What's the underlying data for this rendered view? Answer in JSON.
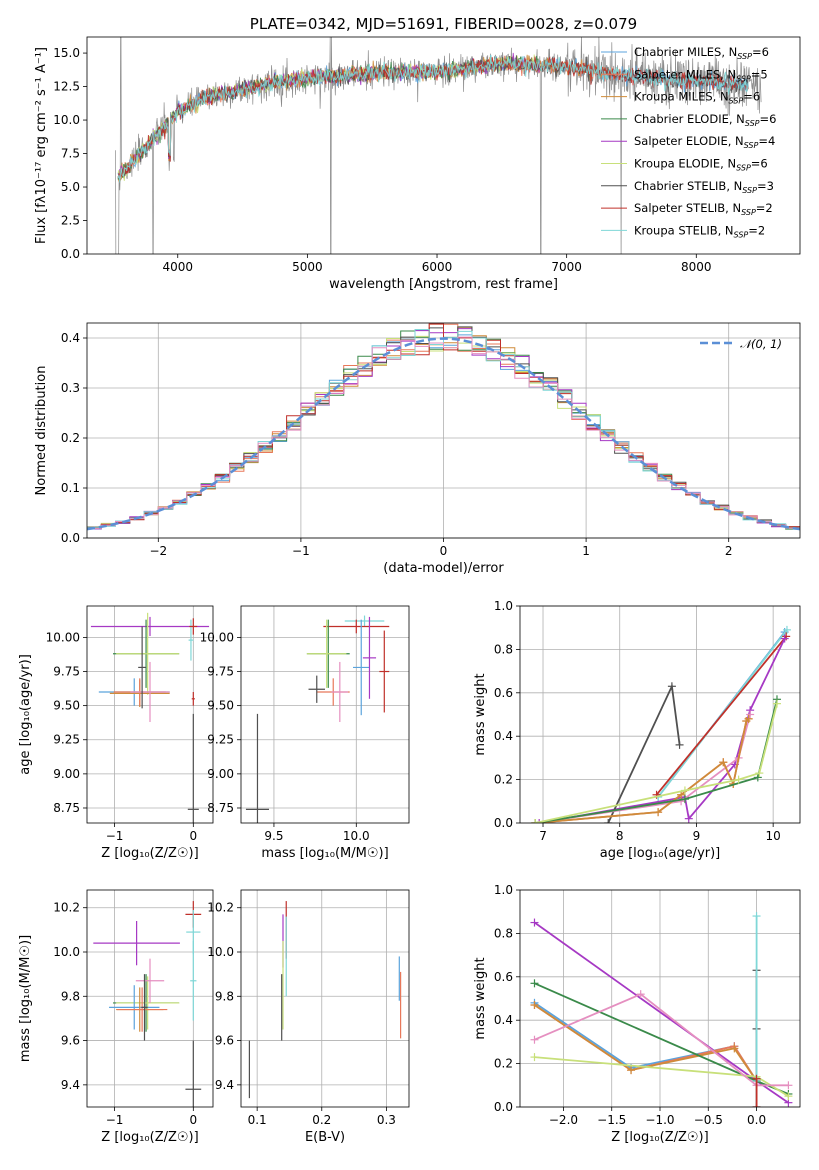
{
  "colors": [
    "#5ba3dc",
    "#e8785a",
    "#cf8b3a",
    "#3a8a4a",
    "#a639c4",
    "#c8e07a",
    "#505050",
    "#c0302a",
    "#7fd7d7",
    "#e58fc0",
    "#8b8b8b",
    "#b8d844"
  ],
  "chart_data": [
    {
      "id": "spectrum",
      "type": "line",
      "title": "PLATE=0342, MJD=51691, FIBERID=0028, z=0.079",
      "xlabel": "wavelength [Angstrom, rest frame]",
      "ylabel": "Flux [f$_\\lambda$10$^{-17}$ erg cm$^{-2}$ s$^{-1}$ A$^{-1}$]",
      "ylabel_display": "Flux [fλ10⁻¹⁷ erg cm⁻² s⁻¹ A⁻¹]",
      "xlim": [
        3300,
        8800
      ],
      "ylim": [
        0,
        16.2
      ],
      "xticks": [
        4000,
        5000,
        6000,
        7000,
        8000
      ],
      "yticks": [
        0.0,
        2.5,
        5.0,
        7.5,
        10.0,
        12.5,
        15.0
      ],
      "grid": false,
      "legend": "top-right",
      "continuum": {
        "x": [
          3520,
          3600,
          3800,
          4000,
          4200,
          4500,
          4800,
          5100,
          5500,
          6000,
          6500,
          7000,
          7400,
          7800,
          8200,
          8500
        ],
        "y": [
          5.6,
          6.3,
          8.5,
          10.6,
          11.6,
          12.3,
          12.9,
          13.2,
          13.5,
          13.6,
          14.2,
          14.0,
          13.4,
          13.0,
          12.8,
          12.5
        ]
      },
      "series": [
        {
          "name": "Chabrier MILES, N$_{SSP}$=6",
          "label": "Chabrier MILES, N",
          "sub": "SSP",
          "tail": "=6",
          "color": "#5ba3dc",
          "x": [
            3540,
            8400
          ]
        },
        {
          "name": "Salpeter MILES, N$_{SSP}$=5",
          "label": "Salpeter MILES, N",
          "sub": "SSP",
          "tail": "=5",
          "color": "#e8785a",
          "x": [
            3540,
            7420
          ]
        },
        {
          "name": "Kroupa MILES, N$_{SSP}$=6",
          "label": "Kroupa MILES, N",
          "sub": "SSP",
          "tail": "=6",
          "color": "#cf8b3a",
          "x": [
            3540,
            7420
          ]
        },
        {
          "name": "Chabrier ELODIE, N$_{SSP}$=6",
          "label": "Chabrier ELODIE, N",
          "sub": "SSP",
          "tail": "=6",
          "color": "#3a8a4a",
          "x": [
            3540,
            6800
          ]
        },
        {
          "name": "Salpeter ELODIE, N$_{SSP}$=4",
          "label": "Salpeter ELODIE, N",
          "sub": "SSP",
          "tail": "=4",
          "color": "#a639c4",
          "x": [
            3540,
            6800
          ]
        },
        {
          "name": "Kroupa ELODIE, N$_{SSP}$=6",
          "label": "Kroupa ELODIE, N",
          "sub": "SSP",
          "tail": "=6",
          "color": "#c8e07a",
          "x": [
            3540,
            6800
          ]
        },
        {
          "name": "Chabrier STELIB, N$_{SSP}$=3",
          "label": "Chabrier STELIB, N",
          "sub": "SSP",
          "tail": "=3",
          "color": "#505050",
          "x": [
            3540,
            8400
          ]
        },
        {
          "name": "Salpeter STELIB, N$_{SSP}$=2",
          "label": "Salpeter STELIB, N",
          "sub": "SSP",
          "tail": "=2",
          "color": "#c0302a",
          "x": [
            3540,
            8400
          ]
        },
        {
          "name": "Kroupa STELIB, N$_{SSP}$=2",
          "label": "Kroupa STELIB, N",
          "sub": "SSP",
          "tail": "=2",
          "color": "#7fd7d7",
          "x": [
            3540,
            8400
          ]
        }
      ]
    },
    {
      "id": "residuals",
      "type": "line",
      "title": "",
      "xlabel": "(data-model)/error",
      "ylabel": "Normed distribution",
      "xlim": [
        -2.5,
        2.5
      ],
      "ylim": [
        0,
        0.43
      ],
      "xticks": [
        -2,
        -1,
        0,
        1,
        2
      ],
      "yticks": [
        0.0,
        0.1,
        0.2,
        0.3,
        0.4
      ],
      "grid": true,
      "legend": "top-right",
      "bins": {
        "start": -2.5,
        "width": 0.1,
        "count": 50
      },
      "series": [
        {
          "name": "$\\mathcal{N}(0,1)$",
          "label": "𝒩(0, 1)",
          "style": "dashed",
          "color": "#5b8fd6"
        }
      ]
    },
    {
      "id": "age-vs-Z",
      "type": "scatter",
      "xlabel": "Z [log$_{10}$(Z/Z$_\\odot$)]",
      "xlabel_display": "Z [log₁₀(Z/Z☉)]",
      "ylabel": "age  [log$_{10}$(age/yr)]",
      "ylabel_display": "age  [log₁₀(age/yr)]",
      "xlim": [
        -1.35,
        0.25
      ],
      "ylim": [
        8.64,
        10.23
      ],
      "xticks": [
        -1,
        0
      ],
      "yticks": [
        8.75,
        9.0,
        9.25,
        9.5,
        9.75,
        10.0
      ],
      "grid": true,
      "points": [
        {
          "x": -0.55,
          "y": 10.08,
          "xerr": 0.75,
          "yerr": 0.07,
          "color": "#a639c4"
        },
        {
          "x": -0.6,
          "y": 9.88,
          "xerr": 0.42,
          "yerr": 0.25,
          "color": "#3a8a4a"
        },
        {
          "x": -0.58,
          "y": 9.88,
          "xerr": 0.4,
          "yerr": 0.3,
          "color": "#c8e07a"
        },
        {
          "x": -0.75,
          "y": 9.6,
          "xerr": 0.45,
          "yerr": 0.1,
          "color": "#5ba3dc"
        },
        {
          "x": -0.68,
          "y": 9.59,
          "xerr": 0.38,
          "yerr": 0.1,
          "color": "#cf8b3a"
        },
        {
          "x": -0.68,
          "y": 9.6,
          "xerr": 0.33,
          "yerr": 0.1,
          "color": "#e8785a"
        },
        {
          "x": -0.55,
          "y": 9.6,
          "xerr": 0.25,
          "yerr": 0.22,
          "color": "#e58fc0"
        },
        {
          "x": -0.65,
          "y": 9.78,
          "xerr": 0.05,
          "yerr": 0.3,
          "color": "#505050"
        },
        {
          "x": -0.03,
          "y": 9.98,
          "xerr": 0.03,
          "yerr": 0.15,
          "color": "#7fd7d7"
        },
        {
          "x": 0.0,
          "y": 10.08,
          "xerr": 0.05,
          "yerr": 0.06,
          "color": "#c0302a"
        },
        {
          "x": 0.0,
          "y": 9.55,
          "xerr": 0.02,
          "yerr": 0.05,
          "color": "#c0302a"
        },
        {
          "x": 0.0,
          "y": 8.74,
          "xerr": 0.07,
          "yerr": 0.7,
          "color": "#505050"
        }
      ]
    },
    {
      "id": "age-vs-mass",
      "type": "scatter",
      "xlabel": "mass [log$_{10}$(M/M$_\\odot$)]",
      "xlabel_display": "mass [log₁₀(M/M☉)]",
      "ylabel": "",
      "xlim": [
        9.3,
        10.32
      ],
      "ylim": [
        8.64,
        10.23
      ],
      "xticks": [
        9.5,
        10.0
      ],
      "yticks": [
        8.75,
        9.0,
        9.25,
        9.5,
        9.75,
        10.0
      ],
      "grid": true,
      "points": [
        {
          "x": 10.05,
          "y": 10.12,
          "xerr": 0.12,
          "yerr": 0.04,
          "color": "#7fd7d7"
        },
        {
          "x": 10.0,
          "y": 10.08,
          "xerr": 0.2,
          "yerr": 0.05,
          "color": "#c0302a"
        },
        {
          "x": 10.03,
          "y": 9.78,
          "xerr": 0.05,
          "yerr": 0.35,
          "color": "#5ba3dc"
        },
        {
          "x": 10.08,
          "y": 9.85,
          "xerr": 0.04,
          "yerr": 0.3,
          "color": "#a639c4"
        },
        {
          "x": 10.17,
          "y": 9.75,
          "xerr": 0.03,
          "yerr": 0.3,
          "color": "#c0302a"
        },
        {
          "x": 9.83,
          "y": 9.88,
          "xerr": 0.13,
          "yerr": 0.25,
          "color": "#3a8a4a"
        },
        {
          "x": 9.82,
          "y": 9.88,
          "xerr": 0.12,
          "yerr": 0.25,
          "color": "#c8e07a"
        },
        {
          "x": 9.86,
          "y": 9.6,
          "xerr": 0.1,
          "yerr": 0.1,
          "color": "#e8785a"
        },
        {
          "x": 9.9,
          "y": 9.6,
          "xerr": 0.05,
          "yerr": 0.22,
          "color": "#e58fc0"
        },
        {
          "x": 9.76,
          "y": 9.62,
          "xerr": 0.05,
          "yerr": 0.1,
          "color": "#505050"
        },
        {
          "x": 9.4,
          "y": 8.74,
          "xerr": 0.07,
          "yerr": 0.7,
          "color": "#505050"
        }
      ]
    },
    {
      "id": "massweight-vs-age",
      "type": "line",
      "xlabel": "age  [log$_{10}$(age/yr)]",
      "xlabel_display": "age  [log₁₀(age/yr)]",
      "ylabel": "mass weight",
      "xlim": [
        6.7,
        10.35
      ],
      "ylim": [
        0,
        1.0
      ],
      "xticks": [
        7,
        8,
        9,
        10
      ],
      "yticks": [
        0.0,
        0.2,
        0.4,
        0.6,
        0.8,
        1.0
      ],
      "grid": true,
      "series": [
        {
          "color": "#5ba3dc",
          "x": [
            8.5,
            10.15
          ],
          "y": [
            0.12,
            0.88
          ]
        },
        {
          "color": "#7fd7d7",
          "x": [
            8.5,
            10.18
          ],
          "y": [
            0.12,
            0.89
          ]
        },
        {
          "color": "#c0302a",
          "x": [
            8.48,
            10.17
          ],
          "y": [
            0.13,
            0.86
          ]
        },
        {
          "color": "#a639c4",
          "x": [
            6.95,
            8.85,
            8.9,
            9.5,
            9.7,
            10.15
          ],
          "y": [
            0.0,
            0.12,
            0.02,
            0.27,
            0.52,
            0.85
          ]
        },
        {
          "color": "#505050",
          "x": [
            7.85,
            8.68,
            8.78
          ],
          "y": [
            0.0,
            0.63,
            0.36
          ]
        },
        {
          "color": "#e58fc0",
          "x": [
            6.9,
            8.8,
            9.55,
            9.7
          ],
          "y": [
            0.0,
            0.1,
            0.3,
            0.5
          ]
        },
        {
          "color": "#e8785a",
          "x": [
            6.9,
            8.5,
            8.8,
            9.35,
            9.48,
            9.65,
            9.68
          ],
          "y": [
            0.0,
            0.05,
            0.13,
            0.28,
            0.18,
            0.47,
            0.48
          ]
        },
        {
          "color": "#cf8b3a",
          "x": [
            6.9,
            8.5,
            8.8,
            9.35,
            9.48,
            9.65,
            9.68
          ],
          "y": [
            0.0,
            0.05,
            0.13,
            0.28,
            0.18,
            0.47,
            0.48
          ]
        },
        {
          "color": "#3a8a4a",
          "x": [
            6.9,
            8.85,
            9.8,
            10.05
          ],
          "y": [
            0.0,
            0.11,
            0.21,
            0.57
          ]
        },
        {
          "color": "#c8e07a",
          "x": [
            6.9,
            8.85,
            9.55,
            9.82,
            10.05
          ],
          "y": [
            0.0,
            0.15,
            0.2,
            0.23,
            0.55
          ]
        }
      ]
    },
    {
      "id": "mass-vs-Z",
      "type": "scatter",
      "xlabel": "Z [log$_{10}$(Z/Z$_\\odot$)]",
      "xlabel_display": "Z [log₁₀(Z/Z☉)]",
      "ylabel": "mass [log$_{10}$(M/M$_\\odot$)]",
      "ylabel_display": "mass [log₁₀(M/M☉)]",
      "xlim": [
        -1.35,
        0.25
      ],
      "ylim": [
        9.3,
        10.28
      ],
      "xticks": [
        -1,
        0
      ],
      "yticks": [
        9.4,
        9.6,
        9.8,
        10.0,
        10.2
      ],
      "grid": true,
      "points": [
        {
          "x": -0.72,
          "y": 10.04,
          "xerr": 0.55,
          "yerr": 0.1,
          "color": "#a639c4"
        },
        {
          "x": -0.6,
          "y": 9.77,
          "xerr": 0.42,
          "yerr": 0.13,
          "color": "#3a8a4a"
        },
        {
          "x": -0.58,
          "y": 9.77,
          "xerr": 0.4,
          "yerr": 0.12,
          "color": "#c8e07a"
        },
        {
          "x": -0.75,
          "y": 9.75,
          "xerr": 0.32,
          "yerr": 0.1,
          "color": "#5ba3dc"
        },
        {
          "x": -0.68,
          "y": 9.74,
          "xerr": 0.3,
          "yerr": 0.1,
          "color": "#cf8b3a"
        },
        {
          "x": -0.65,
          "y": 9.74,
          "xerr": 0.32,
          "yerr": 0.1,
          "color": "#e8785a"
        },
        {
          "x": -0.55,
          "y": 9.87,
          "xerr": 0.18,
          "yerr": 0.1,
          "color": "#e58fc0"
        },
        {
          "x": -0.62,
          "y": 9.75,
          "xerr": 0.04,
          "yerr": 0.15,
          "color": "#505050"
        },
        {
          "x": 0.0,
          "y": 10.17,
          "xerr": 0.1,
          "yerr": 0.06,
          "color": "#c0302a"
        },
        {
          "x": 0.0,
          "y": 10.09,
          "xerr": 0.09,
          "yerr": 0.1,
          "color": "#7fd7d7"
        },
        {
          "x": 0.0,
          "y": 9.87,
          "xerr": 0.04,
          "yerr": 0.18,
          "color": "#7fd7d7"
        },
        {
          "x": 0.0,
          "y": 9.38,
          "xerr": 0.1,
          "yerr": 0.22,
          "color": "#505050"
        }
      ]
    },
    {
      "id": "mass-vs-ebv",
      "type": "scatter",
      "xlabel": "E(B-V)",
      "ylabel": "",
      "xlim": [
        0.075,
        0.335
      ],
      "ylim": [
        9.3,
        10.28
      ],
      "xticks": [
        0.1,
        0.2,
        0.3
      ],
      "yticks": [
        9.4,
        9.6,
        9.8,
        10.0,
        10.2
      ],
      "grid": true,
      "points": [
        {
          "x": 0.145,
          "y": 10.1,
          "xerr": 0.0,
          "yerr": 0.13,
          "color": "#c0302a"
        },
        {
          "x": 0.14,
          "y": 10.05,
          "xerr": 0.0,
          "yerr": 0.12,
          "color": "#a639c4"
        },
        {
          "x": 0.145,
          "y": 9.98,
          "xerr": 0.0,
          "yerr": 0.18,
          "color": "#7fd7d7"
        },
        {
          "x": 0.14,
          "y": 9.85,
          "xerr": 0.0,
          "yerr": 0.2,
          "color": "#c8e07a"
        },
        {
          "x": 0.138,
          "y": 9.75,
          "xerr": 0.0,
          "yerr": 0.15,
          "color": "#505050"
        },
        {
          "x": 0.088,
          "y": 9.47,
          "xerr": 0.0,
          "yerr": 0.13,
          "color": "#505050"
        },
        {
          "x": 0.32,
          "y": 9.88,
          "xerr": 0.0,
          "yerr": 0.1,
          "color": "#5ba3dc"
        },
        {
          "x": 0.322,
          "y": 9.76,
          "xerr": 0.0,
          "yerr": 0.15,
          "color": "#e8785a"
        }
      ]
    },
    {
      "id": "massweight-vs-Z",
      "type": "line",
      "xlabel": "Z [log$_{10}$(Z/Z$_\\odot$)]",
      "xlabel_display": "Z [log₁₀(Z/Z☉)]",
      "ylabel": "mass weight",
      "xlim": [
        -2.45,
        0.45
      ],
      "ylim": [
        0,
        1.0
      ],
      "xticks": [
        -2.0,
        -1.5,
        -1.0,
        -0.5,
        0.0
      ],
      "yticks": [
        0.0,
        0.2,
        0.4,
        0.6,
        0.8,
        1.0
      ],
      "grid": true,
      "series": [
        {
          "color": "#a639c4",
          "x": [
            -2.3,
            0.0,
            0.33
          ],
          "y": [
            0.85,
            0.12,
            0.02
          ]
        },
        {
          "color": "#5ba3dc",
          "x": [
            -2.3,
            -1.3,
            -0.23,
            0.0
          ],
          "y": [
            0.48,
            0.18,
            0.28,
            0.12
          ]
        },
        {
          "color": "#e8785a",
          "x": [
            -2.3,
            -1.3,
            -0.23,
            0.0
          ],
          "y": [
            0.47,
            0.17,
            0.28,
            0.12
          ]
        },
        {
          "color": "#cf8b3a",
          "x": [
            -2.3,
            -1.3,
            -0.23,
            0.0
          ],
          "y": [
            0.47,
            0.17,
            0.27,
            0.12
          ]
        },
        {
          "color": "#3a8a4a",
          "x": [
            -2.3,
            0.0,
            0.33
          ],
          "y": [
            0.57,
            0.12,
            0.06
          ]
        },
        {
          "color": "#c8e07a",
          "x": [
            -2.3,
            0.0,
            0.33
          ],
          "y": [
            0.23,
            0.14,
            0.05
          ]
        },
        {
          "color": "#e58fc0",
          "x": [
            -2.3,
            -1.2,
            0.0,
            0.33
          ],
          "y": [
            0.31,
            0.52,
            0.1,
            0.1
          ]
        },
        {
          "color": "#505050",
          "x": [
            0.0,
            0.0,
            0.0,
            0.0
          ],
          "y": [
            0.63,
            0.36,
            0.13,
            0.0
          ]
        },
        {
          "color": "#7fd7d7",
          "x": [
            0.0,
            0.0,
            0.0
          ],
          "y": [
            0.88,
            0.12,
            0.0
          ]
        },
        {
          "color": "#c0302a",
          "x": [
            0.0,
            0.0
          ],
          "y": [
            0.13,
            0.0
          ]
        }
      ]
    }
  ]
}
